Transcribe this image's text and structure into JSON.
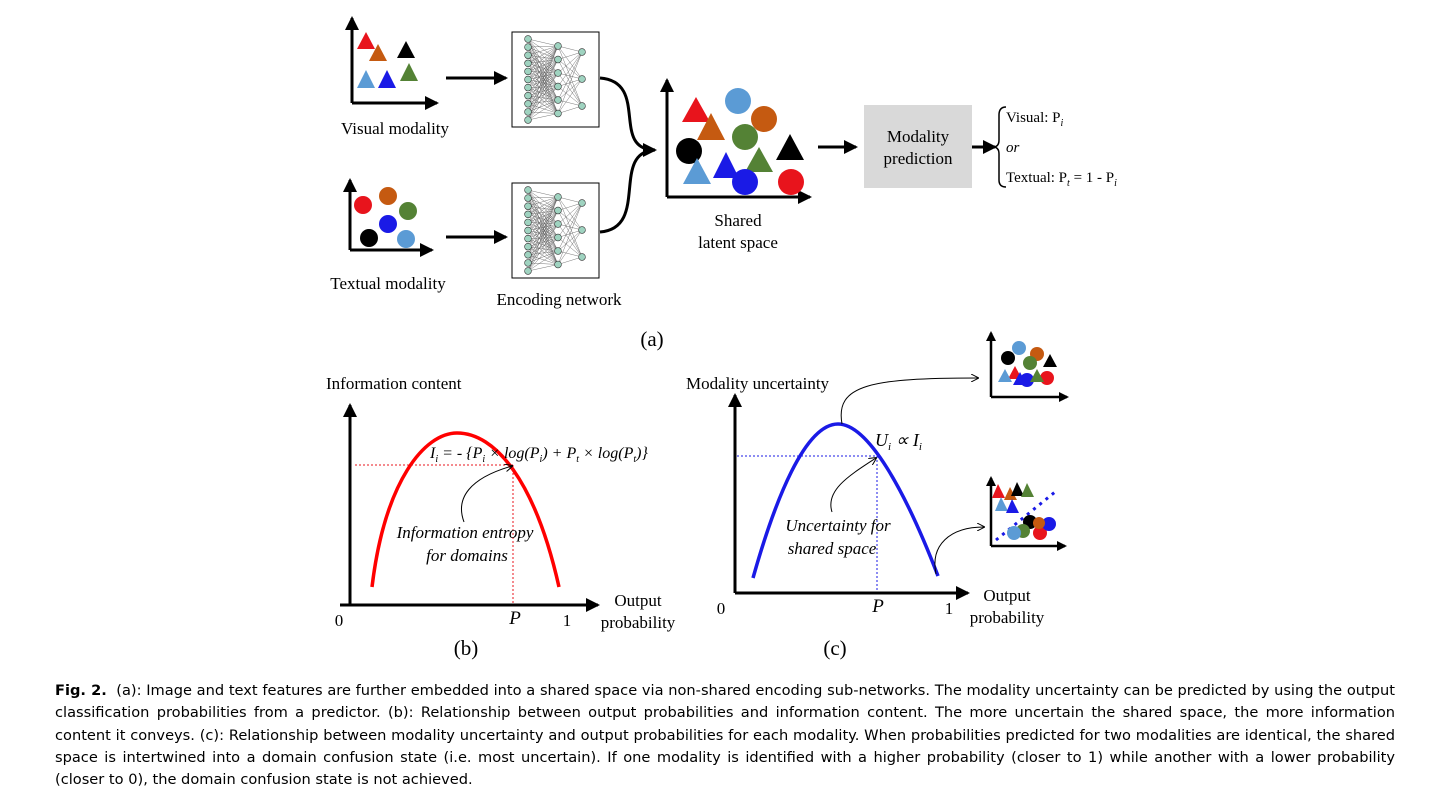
{
  "panel_a": {
    "visual_label": "Visual modality",
    "textual_label": "Textual modality",
    "encoder_label": "Encoding network",
    "shared_label_1": "Shared",
    "shared_label_2": "latent space",
    "predict_label_1": "Modality",
    "predict_label_2": "prediction",
    "out_visual": "Visual: P",
    "out_visual_sub": "i",
    "out_or": "or",
    "out_textual": "Textual: P",
    "out_textual_sub_t": "t",
    "out_textual_rest": " = 1 - P",
    "out_textual_sub_i": "i",
    "tag": "(a)"
  },
  "panel_b": {
    "ylabel": "Information content",
    "xlabel_1": "Output",
    "xlabel_2": "probability",
    "zero": "0",
    "one": "1",
    "p": "P",
    "formula": "I_i = -{P_i × log(P_i) + P_t × log(P_t)}",
    "annot_1": "Information  entropy",
    "annot_2": "for  domains",
    "tag": "(b)",
    "curve_color": "#ff0000"
  },
  "panel_c": {
    "ylabel": "Modality uncertainty",
    "xlabel_1": "Output",
    "xlabel_2": "probability",
    "zero": "0",
    "one": "1",
    "p": "P",
    "formula": "U_i ∝ I_i",
    "annot_1": "Uncertainty for",
    "annot_2": "shared space",
    "tag": "(c)",
    "curve_color": "#1a1ae6"
  },
  "caption": {
    "label": "Fig. 2.",
    "text": "(a): Image and text features are further embedded into a shared space via non-shared encoding sub-networks. The modality uncertainty can be predicted by using the output classification probabilities from a predictor. (b): Relationship between output probabilities and information content. The more uncertain the shared space, the more information content it conveys. (c): Relationship between modality uncertainty and output probabilities for each modality. When probabilities predicted for two modalities are identical, the shared space is intertwined into a domain confusion state (i.e. most uncertain). If one modality is identified with a higher probability (closer to 1) while another with a lower probability (closer to 0), the domain confusion state is not achieved."
  },
  "colors": {
    "red": "#e8141c",
    "brown": "#c55a11",
    "black": "#000000",
    "light_blue": "#5b9bd5",
    "blue": "#1a1ae6",
    "green": "#548235",
    "pred_box": "#d9d9d9",
    "net_node": "#9fd3c0"
  }
}
